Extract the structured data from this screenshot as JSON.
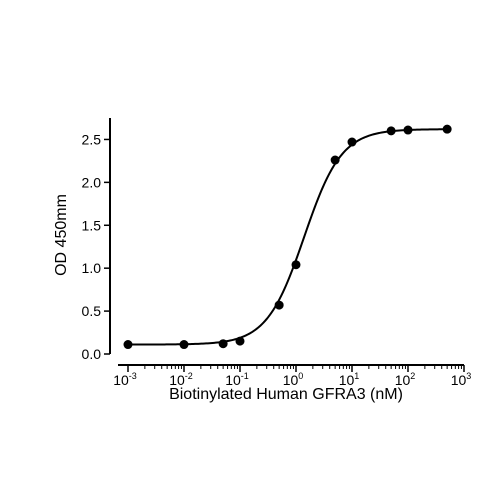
{
  "chart_data": {
    "type": "scatter",
    "xlabel": "Biotinylated Human GFRA3 (nM)",
    "ylabel": "OD 450mm",
    "x_scale": "log10",
    "xlim": [
      0.001,
      1000
    ],
    "ylim": [
      0,
      2.75
    ],
    "x_ticks": [
      {
        "base": "10",
        "exp": "-3",
        "value": 0.001
      },
      {
        "base": "10",
        "exp": "-2",
        "value": 0.01
      },
      {
        "base": "10",
        "exp": "-1",
        "value": 0.1
      },
      {
        "base": "10",
        "exp": "0",
        "value": 1
      },
      {
        "base": "10",
        "exp": "1",
        "value": 10
      },
      {
        "base": "10",
        "exp": "2",
        "value": 100
      },
      {
        "base": "10",
        "exp": "3",
        "value": 1000
      }
    ],
    "y_ticks": [
      {
        "label": "0.0",
        "value": 0
      },
      {
        "label": "0.5",
        "value": 0.5
      },
      {
        "label": "1.0",
        "value": 1.0
      },
      {
        "label": "1.5",
        "value": 1.5
      },
      {
        "label": "2.0",
        "value": 2.0
      },
      {
        "label": "2.5",
        "value": 2.5
      }
    ],
    "grid": false,
    "series": [
      {
        "x": [
          0.001,
          0.01,
          0.05,
          0.1,
          0.5,
          1,
          5,
          10,
          50,
          100,
          500
        ],
        "y": [
          0.11,
          0.11,
          0.12,
          0.15,
          0.57,
          1.04,
          2.26,
          2.47,
          2.6,
          2.61,
          2.62
        ]
      }
    ],
    "fit_curve": {
      "model": "4PL",
      "bottom": 0.11,
      "top": 2.62,
      "ec50": 1.4,
      "hill": 1.3
    }
  }
}
